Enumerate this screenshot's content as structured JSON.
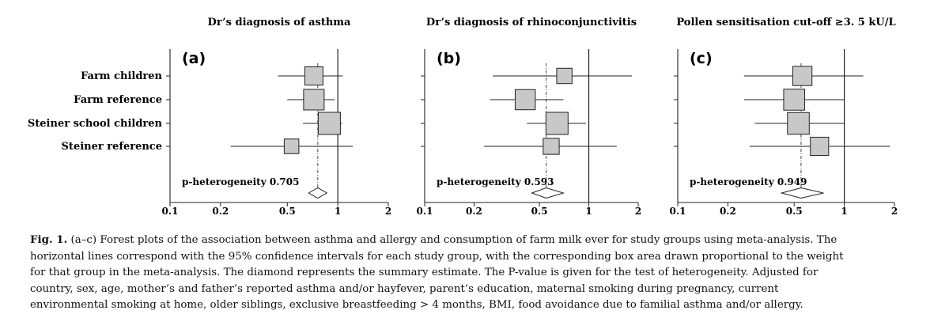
{
  "chart_data": {
    "type": "forest",
    "x_scale": "log",
    "xlim": [
      0.1,
      2
    ],
    "x_ticks": [
      0.1,
      0.2,
      0.5,
      1,
      2
    ],
    "x_tick_labels": [
      "0.1",
      "0.2",
      "0.5",
      "1",
      "2"
    ],
    "reference_line": 1,
    "row_labels": [
      "Farm children",
      "Farm reference",
      "Steiner school children",
      "Steiner reference"
    ],
    "panels": [
      {
        "letter": "(a)",
        "title": "Dr’s diagnosis of asthma",
        "rows": [
          {
            "estimate": 0.72,
            "ci": [
              0.44,
              1.07
            ],
            "weight": 0.55
          },
          {
            "estimate": 0.72,
            "ci": [
              0.5,
              0.96
            ],
            "weight": 0.8
          },
          {
            "estimate": 0.89,
            "ci": [
              0.62,
              1.06
            ],
            "weight": 1.0
          },
          {
            "estimate": 0.53,
            "ci": [
              0.23,
              1.23
            ],
            "weight": 0.25
          }
        ],
        "summary": {
          "estimate": 0.76,
          "ci": [
            0.67,
            0.86
          ]
        },
        "heterogeneity": "p-heterogeneity 0.705"
      },
      {
        "letter": "(b)",
        "title": "Dr’s diagnosis of rhinoconjunctivitis",
        "rows": [
          {
            "estimate": 0.71,
            "ci": [
              0.26,
              1.83
            ],
            "weight": 0.3
          },
          {
            "estimate": 0.41,
            "ci": [
              0.25,
              0.7
            ],
            "weight": 0.75
          },
          {
            "estimate": 0.64,
            "ci": [
              0.42,
              0.96
            ],
            "weight": 1.0
          },
          {
            "estimate": 0.59,
            "ci": [
              0.23,
              1.48
            ],
            "weight": 0.35
          }
        ],
        "summary": {
          "estimate": 0.55,
          "ci": [
            0.45,
            0.7
          ]
        },
        "heterogeneity": "p-heterogeneity 0.593"
      },
      {
        "letter": "(c)",
        "title": "Pollen sensitisation cut-off ≥3. 5 kU/L",
        "rows": [
          {
            "estimate": 0.56,
            "ci": [
              0.25,
              1.3
            ],
            "weight": 0.65
          },
          {
            "estimate": 0.5,
            "ci": [
              0.25,
              1.0
            ],
            "weight": 0.85
          },
          {
            "estimate": 0.53,
            "ci": [
              0.29,
              1.0
            ],
            "weight": 0.95
          },
          {
            "estimate": 0.71,
            "ci": [
              0.27,
              1.88
            ],
            "weight": 0.55
          }
        ],
        "summary": {
          "estimate": 0.55,
          "ci": [
            0.42,
            0.75
          ]
        },
        "heterogeneity": "p-heterogeneity 0.949"
      }
    ]
  },
  "caption": {
    "fig_label": "Fig. 1.",
    "lines": [
      "(a–c) Forest plots of the association between asthma and allergy and consumption of farm milk ever for study groups using meta-analysis. The",
      "horizontal lines correspond with the 95% confidence intervals for each study group, with the corresponding box area drawn proportional to the weight",
      "for that group in the meta-analysis. The diamond represents the summary estimate. The P-value is given for the test of heterogeneity. Adjusted for",
      "country, sex, age, mother’s and father’s reported asthma and/or hayfever, parent’s education, maternal smoking during pregnancy, current",
      "environmental smoking at home, older siblings, exclusive breastfeeding > 4 months, BMI, food avoidance due to familial asthma and/or allergy."
    ]
  }
}
